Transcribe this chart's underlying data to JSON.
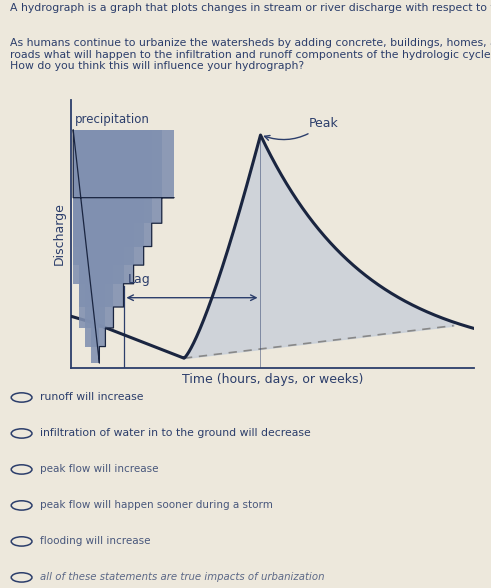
{
  "bg_color": "#ede8dc",
  "text_color": "#2c3e6b",
  "header_text_1": "A hydrograph is a graph that plots changes in stream or river discharge with respect to time.",
  "header_text_2": "As humans continue to urbanize the watersheds by adding concrete, buildings, homes, and\nroads what will happen to the infiltration and runoff components of the hydrologic cycle?\nHow do you think this will influence your hydrograph?",
  "xlabel": "Time (hours, days, or weeks)",
  "ylabel": "Discharge",
  "precip_label": "precipitation",
  "peak_label": "Peak",
  "lag_label": "Lag",
  "choices": [
    "runoff will increase",
    "infiltration of water in to the ground will decrease",
    "peak flow will increase",
    "peak flow will happen sooner during a storm",
    "flooding will increase",
    "all of these statements are true impacts of urbanization"
  ],
  "curve_color": "#1a2540",
  "fill_color": "#c5cdd8",
  "precip_fill": "#8090b0",
  "dashed_color": "#888888",
  "line_width": 2.2,
  "plot_bg": "#ede8dc"
}
